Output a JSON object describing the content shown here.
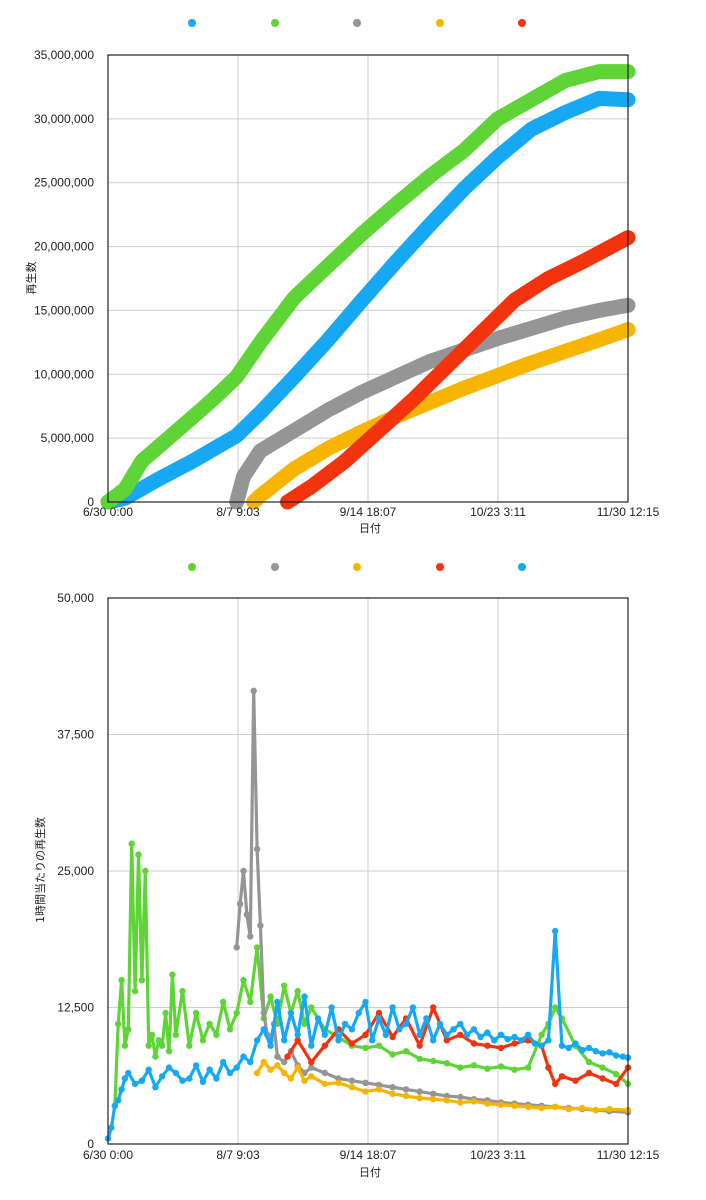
{
  "colors": {
    "blue": "#17a8f4",
    "green": "#5fd436",
    "gray": "#959595",
    "orange": "#f8b500",
    "red": "#f3330d"
  },
  "chart_data": [
    {
      "type": "line",
      "title": "",
      "xlabel": "日付",
      "ylabel": "再生数",
      "x_ticks": [
        "6/30 0:00",
        "8/7 9:03",
        "9/14 18:07",
        "10/23 3:11",
        "11/30 12:15"
      ],
      "y_ticks": [
        "0",
        "5,000,000",
        "10,000,000",
        "15,000,000",
        "20,000,000",
        "25,000,000",
        "30,000,000",
        "35,000,000"
      ],
      "xlim_days": [
        0,
        153.5
      ],
      "ylim": [
        0,
        35000000
      ],
      "grid": true,
      "legend": "top",
      "series": [
        {
          "name": "",
          "color": "blue",
          "x": [
            0,
            5,
            15,
            25,
            38,
            45,
            55,
            65,
            75,
            85,
            95,
            105,
            115,
            125,
            135,
            145,
            153.5
          ],
          "y": [
            0,
            300000,
            1800000,
            3200000,
            5200000,
            7000000,
            9800000,
            12700000,
            15800000,
            18800000,
            21700000,
            24500000,
            27000000,
            29200000,
            30500000,
            31600000,
            31500000
          ]
        },
        {
          "name": "",
          "color": "green",
          "x": [
            0,
            5,
            10,
            20,
            30,
            38,
            45,
            55,
            65,
            75,
            85,
            95,
            105,
            115,
            125,
            135,
            145,
            153.5
          ],
          "y": [
            0,
            1000000,
            3200000,
            5500000,
            7800000,
            9800000,
            12500000,
            16000000,
            18500000,
            21000000,
            23300000,
            25500000,
            27500000,
            30000000,
            31500000,
            33000000,
            33700000,
            33700000
          ]
        },
        {
          "name": "",
          "color": "gray",
          "x": [
            38,
            40,
            45,
            55,
            65,
            75,
            85,
            95,
            105,
            115,
            125,
            135,
            145,
            153.5
          ],
          "y": [
            0,
            2000000,
            4000000,
            5600000,
            7200000,
            8600000,
            9800000,
            11000000,
            11900000,
            12800000,
            13600000,
            14400000,
            15000000,
            15400000
          ]
        },
        {
          "name": "",
          "color": "orange",
          "x": [
            43,
            45,
            55,
            65,
            75,
            85,
            95,
            105,
            115,
            125,
            135,
            145,
            153.5
          ],
          "y": [
            0,
            500000,
            2600000,
            4200000,
            5500000,
            6700000,
            7800000,
            8900000,
            9900000,
            10900000,
            11800000,
            12700000,
            13500000
          ]
        },
        {
          "name": "",
          "color": "red",
          "x": [
            53,
            60,
            70,
            80,
            90,
            100,
            110,
            120,
            130,
            140,
            153.5
          ],
          "y": [
            0,
            1200000,
            3200000,
            5600000,
            8000000,
            10600000,
            13200000,
            15800000,
            17500000,
            18800000,
            20700000
          ]
        }
      ]
    },
    {
      "type": "line",
      "title": "",
      "xlabel": "日付",
      "ylabel": "1時間当たりの再生数",
      "x_ticks": [
        "6/30 0:00",
        "8/7 9:03",
        "9/14 18:07",
        "10/23 3:11",
        "11/30 12:15"
      ],
      "y_ticks": [
        "0",
        "12,500",
        "25,000",
        "37,500",
        "50,000"
      ],
      "xlim_days": [
        0,
        153.5
      ],
      "ylim": [
        0,
        50000
      ],
      "grid": true,
      "legend": "top",
      "series": [
        {
          "name": "",
          "color": "green",
          "x": [
            2,
            3,
            4,
            5,
            6,
            7,
            8,
            9,
            10,
            11,
            12,
            13,
            14,
            15,
            16,
            17,
            18,
            19,
            20,
            22,
            24,
            26,
            28,
            30,
            32,
            34,
            36,
            38,
            40,
            42,
            44,
            46,
            48,
            50,
            52,
            54,
            56,
            58,
            60,
            64,
            68,
            72,
            76,
            80,
            84,
            88,
            92,
            96,
            100,
            104,
            108,
            112,
            116,
            120,
            124,
            128,
            130,
            132,
            134,
            138,
            142,
            146,
            150,
            153.5
          ],
          "y": [
            3500,
            11000,
            15000,
            9000,
            10500,
            27500,
            14000,
            26500,
            15000,
            25000,
            9000,
            10000,
            8000,
            9500,
            9000,
            12000,
            8500,
            15500,
            10000,
            14000,
            9000,
            12000,
            9500,
            11000,
            10000,
            13000,
            10500,
            12000,
            15000,
            13000,
            18000,
            11500,
            13500,
            11000,
            14500,
            12000,
            14000,
            11000,
            12500,
            10500,
            9800,
            9000,
            8800,
            9000,
            8200,
            8500,
            7800,
            7600,
            7400,
            7000,
            7200,
            6900,
            7100,
            6800,
            7000,
            10000,
            11000,
            12500,
            11500,
            9000,
            7500,
            7000,
            6400,
            5500
          ]
        },
        {
          "name": "",
          "color": "gray",
          "x": [
            38,
            39,
            40,
            41,
            42,
            43,
            44,
            45,
            46,
            47,
            48,
            49,
            50,
            52,
            54,
            56,
            58,
            60,
            64,
            68,
            72,
            76,
            80,
            84,
            88,
            92,
            96,
            100,
            104,
            108,
            112,
            116,
            120,
            124,
            128,
            132,
            136,
            140,
            144,
            148,
            153.5
          ],
          "y": [
            18000,
            22000,
            25000,
            21000,
            19000,
            41500,
            27000,
            20000,
            12000,
            10000,
            9500,
            11000,
            8000,
            7500,
            8500,
            7200,
            6500,
            7000,
            6500,
            6000,
            5800,
            5600,
            5400,
            5200,
            5000,
            4800,
            4600,
            4400,
            4300,
            4100,
            4000,
            3800,
            3700,
            3600,
            3500,
            3400,
            3300,
            3200,
            3100,
            3000,
            2900
          ]
        },
        {
          "name": "",
          "color": "orange",
          "x": [
            44,
            46,
            48,
            50,
            52,
            54,
            56,
            58,
            60,
            64,
            68,
            72,
            76,
            80,
            84,
            88,
            92,
            96,
            100,
            104,
            108,
            112,
            116,
            120,
            124,
            128,
            132,
            136,
            140,
            144,
            148,
            153.5
          ],
          "y": [
            6500,
            7500,
            6800,
            7200,
            6500,
            6000,
            7000,
            5800,
            6200,
            5500,
            5600,
            5200,
            4800,
            5000,
            4600,
            4400,
            4200,
            4100,
            4000,
            3800,
            3900,
            3700,
            3600,
            3500,
            3400,
            3300,
            3400,
            3200,
            3300,
            3100,
            3200,
            3100
          ]
        },
        {
          "name": "",
          "color": "red",
          "x": [
            53,
            56,
            60,
            64,
            68,
            72,
            76,
            80,
            84,
            88,
            92,
            96,
            100,
            104,
            108,
            112,
            116,
            120,
            124,
            128,
            130,
            132,
            134,
            138,
            142,
            146,
            150,
            153.5
          ],
          "y": [
            8000,
            9500,
            7500,
            9000,
            10500,
            9200,
            10000,
            12000,
            9800,
            11500,
            9000,
            12500,
            9500,
            10000,
            9200,
            9000,
            8800,
            9200,
            9500,
            9000,
            7000,
            5500,
            6200,
            5800,
            6500,
            6000,
            5500,
            7000
          ]
        },
        {
          "name": "",
          "color": "blue",
          "x": [
            0,
            1,
            2,
            3,
            4,
            5,
            6,
            8,
            10,
            12,
            14,
            16,
            18,
            20,
            22,
            24,
            26,
            28,
            30,
            32,
            34,
            36,
            38,
            40,
            42,
            44,
            46,
            48,
            50,
            52,
            54,
            56,
            58,
            60,
            62,
            64,
            66,
            68,
            70,
            72,
            74,
            76,
            78,
            80,
            82,
            84,
            86,
            88,
            90,
            92,
            94,
            96,
            98,
            100,
            102,
            104,
            106,
            108,
            110,
            112,
            114,
            116,
            118,
            120,
            122,
            124,
            126,
            128,
            130,
            132,
            134,
            136,
            138,
            140,
            142,
            144,
            146,
            148,
            150,
            152,
            153.5
          ],
          "y": [
            500,
            1500,
            3500,
            4000,
            5000,
            6000,
            6500,
            5500,
            5800,
            6800,
            5200,
            6200,
            7000,
            6500,
            5800,
            6000,
            7200,
            5700,
            6800,
            6000,
            7500,
            6500,
            7000,
            8000,
            7500,
            9500,
            10500,
            9000,
            13000,
            9500,
            12000,
            10000,
            13500,
            9000,
            11500,
            10000,
            12500,
            9500,
            11000,
            10500,
            12000,
            13000,
            9500,
            11500,
            10000,
            12500,
            10500,
            11000,
            12500,
            10000,
            11500,
            9500,
            11000,
            10000,
            10500,
            11000,
            10000,
            10500,
            9800,
            10200,
            9500,
            10000,
            9600,
            9800,
            9500,
            10000,
            9200,
            9000,
            9500,
            19500,
            9000,
            8800,
            9200,
            8600,
            8800,
            8500,
            8300,
            8400,
            8100,
            8000,
            7900
          ]
        }
      ]
    }
  ]
}
